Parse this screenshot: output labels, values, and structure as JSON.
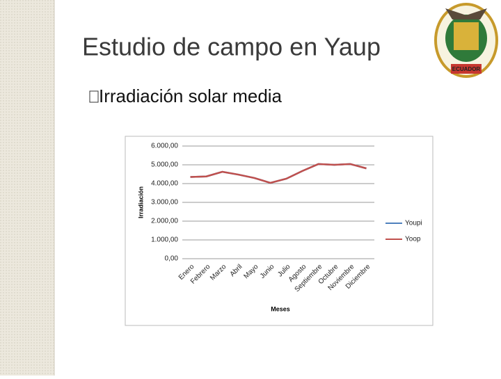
{
  "title": "Estudio de campo en Yaup",
  "bullet": "Irradiación solar media",
  "logo_text": "ECUADOR",
  "chart_data": {
    "type": "line",
    "x_label": "Meses",
    "y_label": "Irradiación",
    "categories": [
      "Enero",
      "Febrero",
      "Marzo",
      "Abril",
      "Mayo",
      "Junio",
      "Julio",
      "Agosto",
      "Septiembre",
      "Octubre",
      "Noviembre",
      "Diciembre"
    ],
    "series": [
      {
        "name": "Youpi",
        "color": "#4f81bd",
        "values": [
          4350,
          4380,
          4630,
          4480,
          4300,
          4040,
          4260,
          4670,
          5040,
          5000,
          5040,
          4810
        ]
      },
      {
        "name": "Yoop",
        "color": "#c0504d",
        "values": [
          4350,
          4380,
          4630,
          4480,
          4300,
          4040,
          4260,
          4670,
          5040,
          5000,
          5040,
          4810
        ]
      }
    ],
    "ylim": [
      0,
      6000
    ],
    "yticks": [
      {
        "value": 0,
        "label": "0,00"
      },
      {
        "value": 1000,
        "label": "1.000,00"
      },
      {
        "value": 2000,
        "label": "2.000,00"
      },
      {
        "value": 3000,
        "label": "3.000,00"
      },
      {
        "value": 4000,
        "label": "4.000,00"
      },
      {
        "value": 5000,
        "label": "5.000,00"
      },
      {
        "value": 6000,
        "label": "6.000,00"
      }
    ],
    "grid": true,
    "legend": "right"
  }
}
